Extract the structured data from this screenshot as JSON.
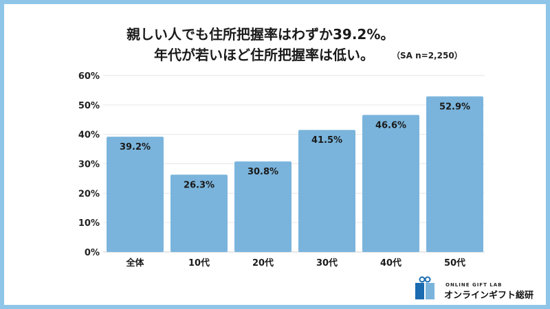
{
  "chart_data": {
    "type": "bar",
    "title": "親しい人でも住所把握率はわずか39.2%。",
    "subtitle": "年代が若いほど住所把握率は低い。",
    "note": "（SA n=2,250）",
    "categories": [
      "全体",
      "10代",
      "20代",
      "30代",
      "40代",
      "50代"
    ],
    "values": [
      39.2,
      26.3,
      30.8,
      41.5,
      46.6,
      52.9
    ],
    "data_labels": [
      "39.2%",
      "26.3%",
      "30.8%",
      "41.5%",
      "46.6%",
      "52.9%"
    ],
    "yticks": [
      0,
      10,
      20,
      30,
      40,
      50,
      60
    ],
    "ytick_labels": [
      "0%",
      "10%",
      "20%",
      "30%",
      "40%",
      "50%",
      "60%"
    ],
    "ylim": [
      0,
      60
    ],
    "xlabel": "",
    "ylabel": "",
    "grid": true,
    "bar_color": "#7ab4dc"
  },
  "logo": {
    "en": "ONLINE GIFT LAB",
    "jp": "オンラインギフト総研"
  }
}
